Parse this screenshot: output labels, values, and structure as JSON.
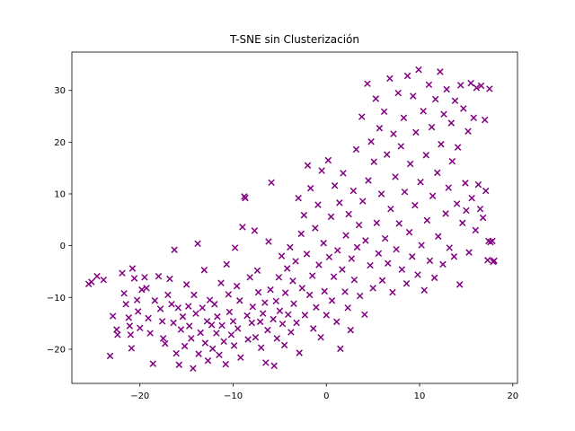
{
  "chart_data": {
    "type": "scatter",
    "title": "T-SNE sin Clusterización",
    "xlabel": "",
    "ylabel": "",
    "xlim": [
      -27.3,
      20.5
    ],
    "ylim": [
      -26.6,
      37.4
    ],
    "xticks": [
      -20,
      -10,
      0,
      10,
      20
    ],
    "xtick_labels": [
      "−20",
      "−10",
      "0",
      "10",
      "20"
    ],
    "yticks": [
      -20,
      -10,
      0,
      10,
      20,
      30
    ],
    "ytick_labels": [
      "−20",
      "−10",
      "0",
      "10",
      "20",
      "30"
    ],
    "grid": false,
    "marker": "x",
    "color": "#800080",
    "points": [
      [
        -25.5,
        -7.4
      ],
      [
        -25.2,
        -7.0
      ],
      [
        -24.6,
        -5.9
      ],
      [
        -23.9,
        -6.6
      ],
      [
        -23.2,
        -21.3
      ],
      [
        -22.9,
        -13.6
      ],
      [
        -22.5,
        -16.2
      ],
      [
        -22.4,
        -17.2
      ],
      [
        -21.9,
        -5.3
      ],
      [
        -21.7,
        -9.2
      ],
      [
        -21.5,
        -11.3
      ],
      [
        -21.2,
        -13.9
      ],
      [
        -21.1,
        -15.5
      ],
      [
        -21.0,
        -17.2
      ],
      [
        -20.9,
        -19.8
      ],
      [
        -20.8,
        -4.4
      ],
      [
        -20.6,
        -6.3
      ],
      [
        -20.3,
        -10.5
      ],
      [
        -20.2,
        -12.7
      ],
      [
        -20.0,
        -15.9
      ],
      [
        -19.8,
        -8.5
      ],
      [
        -19.5,
        -6.1
      ],
      [
        -19.3,
        -8.2
      ],
      [
        -19.1,
        -14.0
      ],
      [
        -18.9,
        -16.9
      ],
      [
        -18.6,
        -22.8
      ],
      [
        -18.4,
        -10.6
      ],
      [
        -18.0,
        -5.9
      ],
      [
        -17.8,
        -12.2
      ],
      [
        -17.6,
        -14.6
      ],
      [
        -17.5,
        -17.9
      ],
      [
        -17.3,
        -18.9
      ],
      [
        -17.0,
        -9.5
      ],
      [
        -16.8,
        -6.4
      ],
      [
        -16.6,
        -11.3
      ],
      [
        -16.4,
        -14.9
      ],
      [
        -16.3,
        -0.8
      ],
      [
        -16.1,
        -20.8
      ],
      [
        -15.9,
        -12.0
      ],
      [
        -15.8,
        -23.0
      ],
      [
        -15.6,
        -16.2
      ],
      [
        -15.4,
        -13.7
      ],
      [
        -15.2,
        -19.4
      ],
      [
        -15.0,
        -7.5
      ],
      [
        -14.8,
        -11.7
      ],
      [
        -14.7,
        -15.5
      ],
      [
        -14.5,
        -17.9
      ],
      [
        -14.3,
        -23.7
      ],
      [
        -14.2,
        -9.5
      ],
      [
        -14.0,
        -13.1
      ],
      [
        -13.8,
        0.4
      ],
      [
        -13.7,
        -20.9
      ],
      [
        -13.5,
        -16.8
      ],
      [
        -13.3,
        -12.0
      ],
      [
        -13.1,
        -4.7
      ],
      [
        -13.0,
        -18.8
      ],
      [
        -12.8,
        -14.6
      ],
      [
        -12.7,
        -22.2
      ],
      [
        -12.5,
        -10.5
      ],
      [
        -12.3,
        -15.3
      ],
      [
        -12.2,
        -19.9
      ],
      [
        -12.0,
        -11.3
      ],
      [
        -11.8,
        -16.9
      ],
      [
        -11.7,
        -13.7
      ],
      [
        -11.5,
        -21.1
      ],
      [
        -11.3,
        -7.2
      ],
      [
        -11.2,
        -15.4
      ],
      [
        -11.0,
        -18.5
      ],
      [
        -10.8,
        -22.9
      ],
      [
        -10.7,
        -3.6
      ],
      [
        -10.5,
        -9.4
      ],
      [
        -10.4,
        -12.8
      ],
      [
        -10.2,
        -17.2
      ],
      [
        -10.0,
        -14.6
      ],
      [
        -9.9,
        -19.3
      ],
      [
        -9.8,
        -0.4
      ],
      [
        -9.6,
        -7.8
      ],
      [
        -9.5,
        -16.0
      ],
      [
        -9.3,
        -10.6
      ],
      [
        -9.2,
        -21.6
      ],
      [
        -9.0,
        3.6
      ],
      [
        -8.8,
        9.5
      ],
      [
        -8.7,
        9.2
      ],
      [
        -8.5,
        -13.5
      ],
      [
        -8.4,
        -18.1
      ],
      [
        -8.2,
        -6.1
      ],
      [
        -8.0,
        -14.9
      ],
      [
        -7.9,
        -11.8
      ],
      [
        -7.7,
        2.9
      ],
      [
        -7.6,
        -17.7
      ],
      [
        -7.4,
        -4.8
      ],
      [
        -7.3,
        -9.0
      ],
      [
        -7.1,
        -14.7
      ],
      [
        -7.0,
        -19.7
      ],
      [
        -6.8,
        -13.1
      ],
      [
        -6.6,
        -11.0
      ],
      [
        -6.5,
        -22.6
      ],
      [
        -6.3,
        -16.3
      ],
      [
        -6.2,
        0.8
      ],
      [
        -6.0,
        -8.5
      ],
      [
        -5.9,
        12.2
      ],
      [
        -5.7,
        -14.2
      ],
      [
        -5.6,
        -23.2
      ],
      [
        -5.4,
        -10.7
      ],
      [
        -5.3,
        -17.9
      ],
      [
        -5.1,
        -6.1
      ],
      [
        -5.0,
        -12.6
      ],
      [
        -4.8,
        -2.0
      ],
      [
        -4.7,
        -15.1
      ],
      [
        -4.5,
        -19.2
      ],
      [
        -4.4,
        -9.1
      ],
      [
        -4.2,
        -4.4
      ],
      [
        -4.1,
        -13.3
      ],
      [
        -3.9,
        -0.3
      ],
      [
        -3.8,
        -16.7
      ],
      [
        -3.6,
        -6.8
      ],
      [
        -3.5,
        -11.2
      ],
      [
        -3.3,
        -3.0
      ],
      [
        -3.2,
        -14.9
      ],
      [
        -3.0,
        9.2
      ],
      [
        -2.9,
        -20.7
      ],
      [
        -2.7,
        2.3
      ],
      [
        -2.6,
        -8.2
      ],
      [
        -2.4,
        5.9
      ],
      [
        -2.3,
        -13.4
      ],
      [
        -2.1,
        -1.6
      ],
      [
        -2.0,
        15.5
      ],
      [
        -1.8,
        -9.5
      ],
      [
        -1.7,
        11.1
      ],
      [
        -1.5,
        -5.8
      ],
      [
        -1.4,
        -16.0
      ],
      [
        -1.2,
        3.4
      ],
      [
        -1.1,
        -11.9
      ],
      [
        -0.9,
        7.9
      ],
      [
        -0.8,
        -3.7
      ],
      [
        -0.6,
        -17.7
      ],
      [
        -0.5,
        14.5
      ],
      [
        -0.3,
        0.5
      ],
      [
        -0.2,
        -8.8
      ],
      [
        0.0,
        -13.4
      ],
      [
        0.2,
        16.5
      ],
      [
        0.3,
        -2.2
      ],
      [
        0.5,
        5.6
      ],
      [
        0.6,
        -10.6
      ],
      [
        0.8,
        -6.0
      ],
      [
        0.9,
        11.6
      ],
      [
        1.1,
        -14.7
      ],
      [
        1.2,
        -0.9
      ],
      [
        1.4,
        8.3
      ],
      [
        1.5,
        -19.9
      ],
      [
        1.7,
        -4.6
      ],
      [
        1.8,
        14.0
      ],
      [
        2.0,
        -8.9
      ],
      [
        2.1,
        2.0
      ],
      [
        2.3,
        -12.0
      ],
      [
        2.4,
        6.1
      ],
      [
        2.6,
        -16.3
      ],
      [
        2.7,
        -2.5
      ],
      [
        2.9,
        10.6
      ],
      [
        3.0,
        -6.6
      ],
      [
        3.2,
        18.6
      ],
      [
        3.3,
        -0.3
      ],
      [
        3.5,
        4.0
      ],
      [
        3.6,
        -9.7
      ],
      [
        3.8,
        24.9
      ],
      [
        3.9,
        8.6
      ],
      [
        4.1,
        -13.3
      ],
      [
        4.2,
        1.0
      ],
      [
        4.4,
        31.3
      ],
      [
        4.5,
        12.6
      ],
      [
        4.7,
        -3.8
      ],
      [
        4.8,
        20.1
      ],
      [
        5.0,
        -8.2
      ],
      [
        5.1,
        16.2
      ],
      [
        5.3,
        28.4
      ],
      [
        5.4,
        4.4
      ],
      [
        5.6,
        -1.5
      ],
      [
        5.7,
        22.7
      ],
      [
        5.9,
        10.0
      ],
      [
        6.0,
        -6.7
      ],
      [
        6.2,
        25.9
      ],
      [
        6.3,
        1.4
      ],
      [
        6.5,
        17.6
      ],
      [
        6.6,
        -3.4
      ],
      [
        6.8,
        32.3
      ],
      [
        6.9,
        7.1
      ],
      [
        7.1,
        -9.0
      ],
      [
        7.2,
        21.6
      ],
      [
        7.4,
        13.3
      ],
      [
        7.5,
        -0.7
      ],
      [
        7.7,
        29.5
      ],
      [
        7.8,
        4.3
      ],
      [
        8.0,
        19.2
      ],
      [
        8.1,
        -4.6
      ],
      [
        8.3,
        24.7
      ],
      [
        8.4,
        10.4
      ],
      [
        8.6,
        -7.3
      ],
      [
        8.7,
        32.8
      ],
      [
        8.9,
        2.6
      ],
      [
        9.0,
        15.8
      ],
      [
        9.2,
        -2.1
      ],
      [
        9.3,
        28.9
      ],
      [
        9.5,
        7.8
      ],
      [
        9.6,
        21.9
      ],
      [
        9.8,
        -5.6
      ],
      [
        9.9,
        34.0
      ],
      [
        10.1,
        12.3
      ],
      [
        10.2,
        0.1
      ],
      [
        10.4,
        26.0
      ],
      [
        10.5,
        -8.6
      ],
      [
        10.7,
        17.5
      ],
      [
        10.8,
        4.9
      ],
      [
        11.0,
        31.1
      ],
      [
        11.1,
        -2.9
      ],
      [
        11.3,
        22.9
      ],
      [
        11.4,
        9.6
      ],
      [
        11.6,
        -6.2
      ],
      [
        11.7,
        28.3
      ],
      [
        11.9,
        14.1
      ],
      [
        12.0,
        1.8
      ],
      [
        12.2,
        33.6
      ],
      [
        12.3,
        19.6
      ],
      [
        12.5,
        -3.6
      ],
      [
        12.6,
        25.4
      ],
      [
        12.8,
        6.2
      ],
      [
        12.9,
        30.2
      ],
      [
        13.1,
        11.2
      ],
      [
        13.2,
        -0.4
      ],
      [
        13.4,
        23.7
      ],
      [
        13.5,
        16.3
      ],
      [
        13.7,
        -2.1
      ],
      [
        13.8,
        28.0
      ],
      [
        14.0,
        8.1
      ],
      [
        14.1,
        19.0
      ],
      [
        14.3,
        -7.5
      ],
      [
        14.4,
        31.0
      ],
      [
        14.6,
        4.4
      ],
      [
        14.7,
        26.5
      ],
      [
        14.9,
        12.1
      ],
      [
        15.0,
        6.8
      ],
      [
        15.2,
        22.1
      ],
      [
        15.3,
        -1.3
      ],
      [
        15.5,
        31.4
      ],
      [
        15.6,
        9.2
      ],
      [
        15.8,
        24.7
      ],
      [
        16.0,
        3.0
      ],
      [
        16.1,
        30.5
      ],
      [
        16.3,
        11.8
      ],
      [
        16.5,
        7.1
      ],
      [
        16.6,
        30.9
      ],
      [
        16.8,
        5.4
      ],
      [
        17.0,
        24.3
      ],
      [
        17.1,
        10.6
      ],
      [
        17.3,
        -2.8
      ],
      [
        17.5,
        30.3
      ],
      [
        17.6,
        0.7
      ],
      [
        17.8,
        0.9
      ],
      [
        17.9,
        -3.1
      ],
      [
        18.0,
        -2.9
      ],
      [
        17.4,
        0.9
      ]
    ]
  }
}
